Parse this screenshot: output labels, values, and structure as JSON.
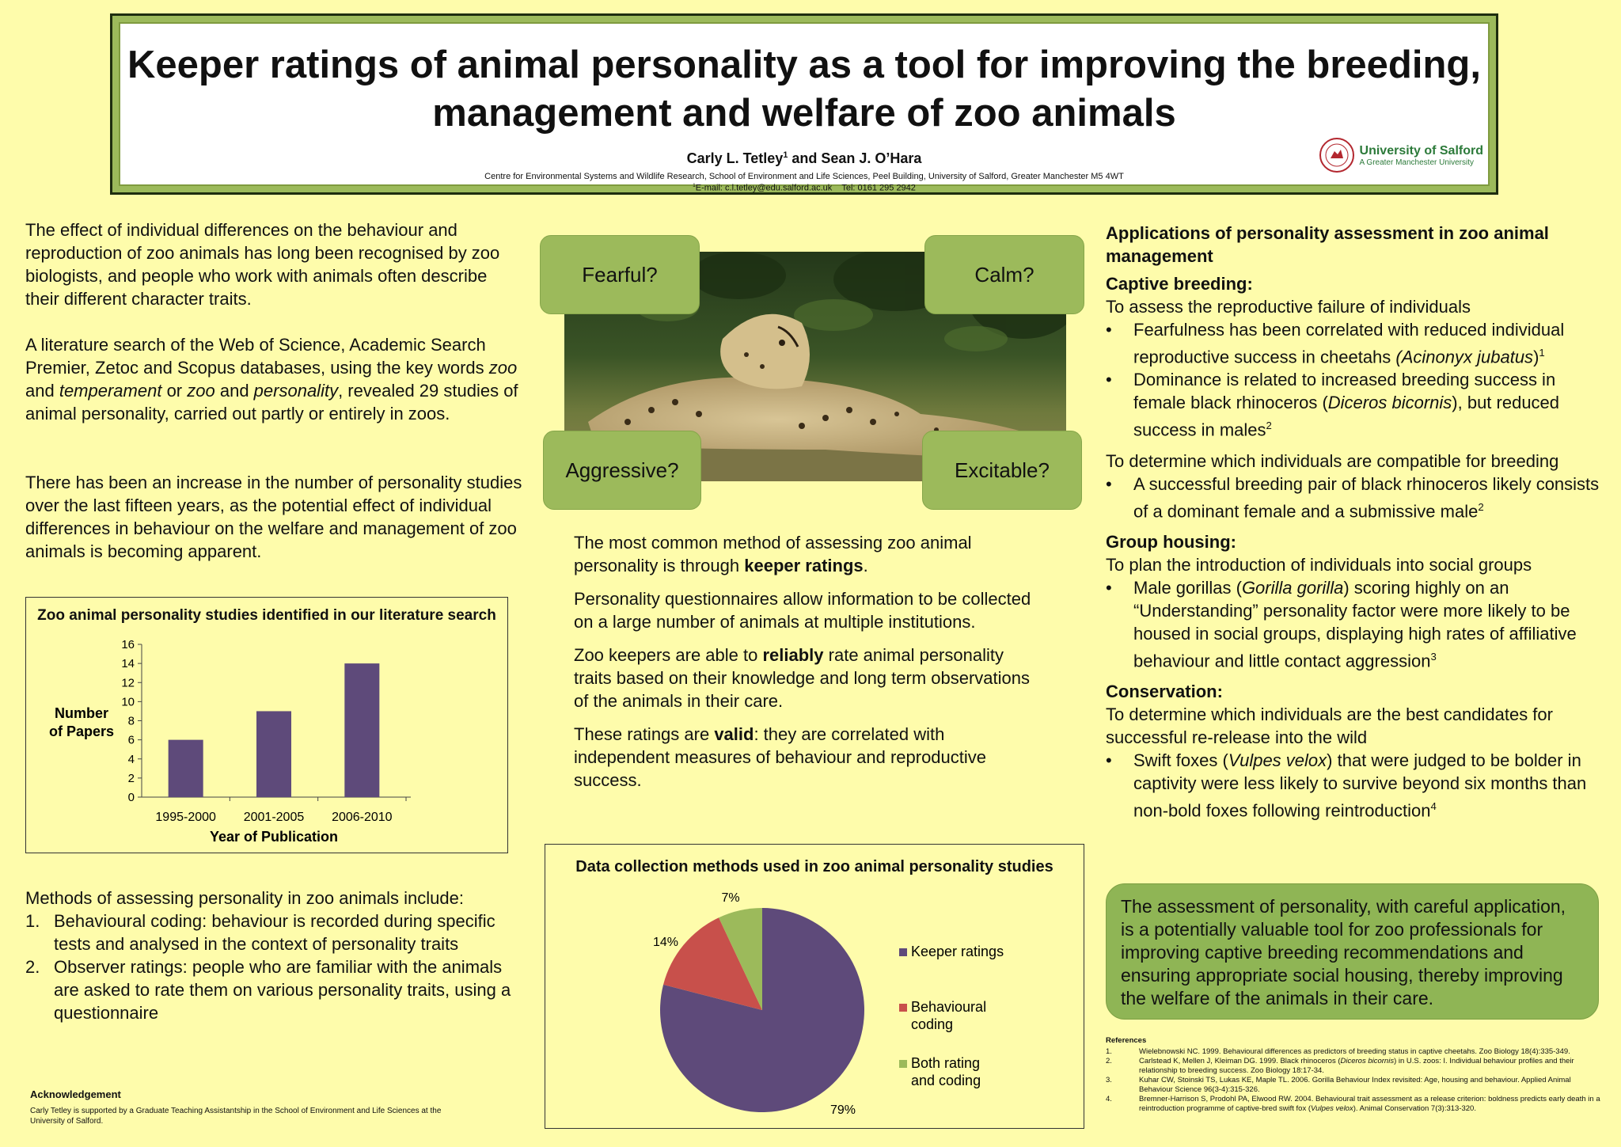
{
  "header": {
    "title": "Keeper ratings of animal personality as a tool for improving the breeding, management and welfare of zoo animals",
    "author1": "Carly L. Tetley",
    "author1_sup": "1",
    "authors_join": " and Sean J. O’Hara",
    "affiliation": "Centre for Environmental Systems and Wildlife Research, School of Environment and Life Sciences, Peel Building, University of Salford, Greater Manchester M5 4WT",
    "email_sup": "1",
    "email": "E-mail: c.l.tetley@edu.salford.ac.uk    Tel: 0161 295 2942",
    "logo_name": "University of Salford",
    "logo_tag": "A Greater Manchester University"
  },
  "left": {
    "p1": "The effect of individual differences on the behaviour and reproduction of zoo animals has long been recognised by zoo biologists, and people who work with animals often describe their different character traits.",
    "p2_a": "A literature search of the Web of Science, Academic Search Premier, Zetoc and Scopus databases, using the key words ",
    "p2_zoo1": "zoo",
    "p2_and1": " and ",
    "p2_temp": "temperament",
    "p2_or": " or ",
    "p2_zoo2": "zoo",
    "p2_and2": " and ",
    "p2_pers": "personality",
    "p2_b": ", revealed 29 studies of animal personality, carried out partly or entirely in zoos.",
    "p3": "There has been an increase in the number of personality studies over the last fifteen years, as the potential effect of individual differences in behaviour on the welfare and management of zoo animals is becoming apparent.",
    "methods_intro": "Methods of assessing personality in zoo animals include:",
    "methods": [
      {
        "num": "1.",
        "text": "Behavioural coding:  behaviour is recorded during specific tests and analysed in the context of personality traits"
      },
      {
        "num": "2.",
        "text": "Observer ratings: people who are familiar with the animals are asked to rate them on various personality traits, using a questionnaire"
      }
    ],
    "ack_title": "Acknowledgement",
    "ack_text": "Carly Tetley is supported by a Graduate Teaching Assistantship in the School of Environment and Life Sciences at the University of Salford."
  },
  "traits": {
    "fearful": "Fearful?",
    "calm": "Calm?",
    "aggressive": "Aggressive?",
    "excitable": "Excitable?"
  },
  "center": {
    "p1_a": "The most common method of assessing zoo animal personality is through ",
    "p1_b": "keeper ratings",
    "p1_c": ".",
    "p2": "Personality questionnaires allow information to be collected on a large number of animals at multiple institutions.",
    "p3_a": "Zoo keepers are able to ",
    "p3_b": "reliably",
    "p3_c": " rate animal personality traits based on their knowledge and long term observations of the animals in their care.",
    "p4_a": "These ratings are ",
    "p4_b": "valid",
    "p4_c": ": they are correlated with independent measures of behaviour and reproductive success."
  },
  "right": {
    "heading": "Applications of personality assessment in zoo animal management",
    "breeding_h": "Captive breeding:",
    "breeding_intro": "To assess the reproductive failure of individuals",
    "b1_a": "Fearfulness has been correlated with reduced individual reproductive success in cheetahs ",
    "b1_i": "(Acinonyx jubatus",
    "b1_c": ")",
    "b1_sup": "1",
    "b2_a": "Dominance is related to increased breeding success in female black rhinoceros (",
    "b2_i": "Diceros bicornis",
    "b2_c": "), but reduced success in males",
    "b2_sup": "2",
    "compat_intro": "To determine which individuals are compatible for breeding",
    "b3": "A successful breeding pair of black rhinoceros likely consists of a dominant female and a submissive male",
    "b3_sup": "2",
    "group_h": "Group housing:",
    "group_intro": "To plan the introduction of individuals into social groups",
    "b4_a": "Male gorillas (",
    "b4_i": "Gorilla gorilla",
    "b4_c": ") scoring highly on an “Understanding” personality factor were more likely to be housed in social groups, displaying high rates of affiliative behaviour and little contact aggression",
    "b4_sup": "3",
    "cons_h": "Conservation:",
    "cons_intro": "To determine which individuals are the best candidates for successful re-release into the wild",
    "b5_a": "Swift foxes (",
    "b5_i": "Vulpes velox",
    "b5_c": ") that were judged to be bolder in captivity were less likely to survive beyond six months than non-bold foxes following reintroduction",
    "b5_sup": "4",
    "conclusion": "The assessment of personality, with careful application, is a potentially valuable tool for zoo professionals for improving captive breeding recommendations and ensuring appropriate social housing, thereby improving the welfare of the animals in their care."
  },
  "references": {
    "title": "References",
    "items": [
      {
        "n": "1.",
        "a": "Wielebnowski NC. 1999. Behavioural differences as predictors of breeding status in captive cheetahs. Zoo Biology 18(4):335-349.",
        "i": "",
        "b": ""
      },
      {
        "n": "2.",
        "a": "Carlstead K, Mellen J, Kleiman DG. 1999. Black rhinoceros (",
        "i": "Diceros bicornis",
        "b": ") in U.S. zoos: I. Individual behaviour profiles and their relationship to breeding success. Zoo Biology 18:17-34."
      },
      {
        "n": "3.",
        "a": "Kuhar CW, Stoinski TS, Lukas KE, Maple TL. 2006. Gorilla Behaviour Index revisited: Age, housing and behaviour. Applied Animal Behaviour Science 96(3-4):315-326.",
        "i": "",
        "b": ""
      },
      {
        "n": "4.",
        "a": "Bremner-Harrison S, Prodohl PA, Elwood RW. 2004. Behavioural trait assessment as a release criterion: boldness predicts early death in a reintroduction programme of captive-bred swift fox (",
        "i": "Vulpes velox",
        "b": "). Animal Conservation 7(3):313-320."
      }
    ]
  },
  "chart_data": [
    {
      "type": "bar",
      "title": "Zoo animal personality studies identified in our literature search",
      "categories": [
        "1995-2000",
        "2001-2005",
        "2006-2010"
      ],
      "values": [
        6,
        9,
        14
      ],
      "xlabel": "Year of Publication",
      "ylabel_line1": "Number",
      "ylabel_line2": "of Papers",
      "ylim": [
        0,
        16
      ],
      "yticks": [
        "0",
        "2",
        "4",
        "6",
        "8",
        "10",
        "12",
        "14",
        "16"
      ],
      "color": "#5e4a7a"
    },
    {
      "type": "pie",
      "title": "Data collection methods used in zoo animal personality studies",
      "slices": [
        {
          "name": "Keeper ratings",
          "label_line2": "",
          "value": 79,
          "label": "79%",
          "color": "#5e4a7a"
        },
        {
          "name": "Behavioural",
          "label_line2": "coding",
          "value": 14,
          "label": "14%",
          "color": "#c8504b"
        },
        {
          "name": "Both rating",
          "label_line2": "and coding",
          "value": 7,
          "label": "7%",
          "color": "#9cba5b"
        }
      ],
      "legend": "right"
    }
  ]
}
